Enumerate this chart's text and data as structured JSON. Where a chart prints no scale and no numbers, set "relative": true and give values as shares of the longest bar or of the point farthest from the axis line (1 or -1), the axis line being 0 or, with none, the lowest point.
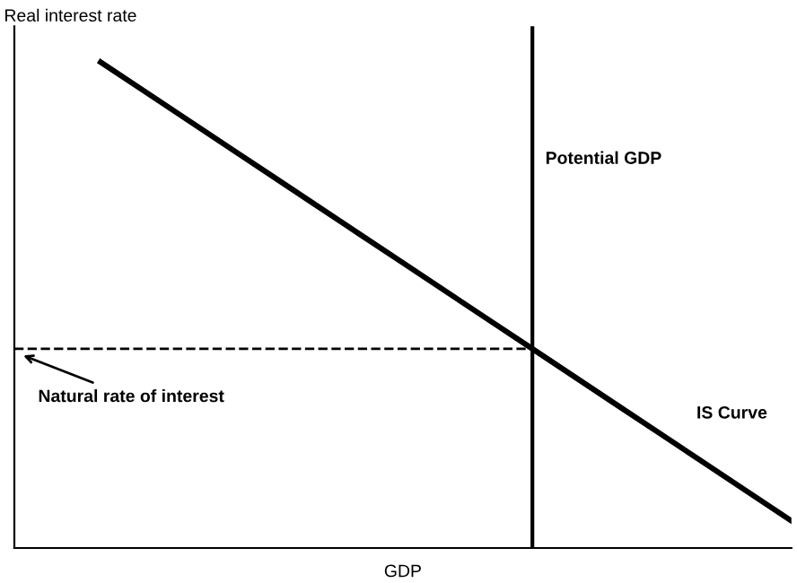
{
  "chart_data": {
    "type": "line",
    "relative": true,
    "ylabel": "Real interest rate",
    "xlabel": "GDP",
    "categories": [
      null,
      null,
      null,
      null,
      null,
      null,
      null,
      null,
      null,
      null,
      null,
      null,
      null,
      null,
      null,
      null,
      null,
      null,
      null
    ],
    "series": [
      {
        "name": "IS Curve",
        "color": "#000000",
        "values": [
          null,
          null,
          1,
          0.941,
          0.882,
          0.823,
          0.764,
          0.705,
          0.646,
          0.587,
          0.528,
          0.469,
          0.41,
          0.351,
          0.292,
          0.233,
          0.174,
          0.115,
          0.056
        ],
        "line_style": "solid"
      },
      {
        "color": "#000000",
        "values": [
          0.41,
          0.41,
          0.41,
          0.41,
          0.41,
          0.41,
          0.41,
          0.41,
          0.41,
          0.41,
          0.41,
          0.41,
          0.41,
          null,
          null,
          null,
          null,
          null,
          null
        ],
        "line_style": "dashed"
      }
    ],
    "annotations": [
      "Potential GDP",
      {
        "text": "Natural rate of interest",
        "y": 0.41
      }
    ]
  }
}
